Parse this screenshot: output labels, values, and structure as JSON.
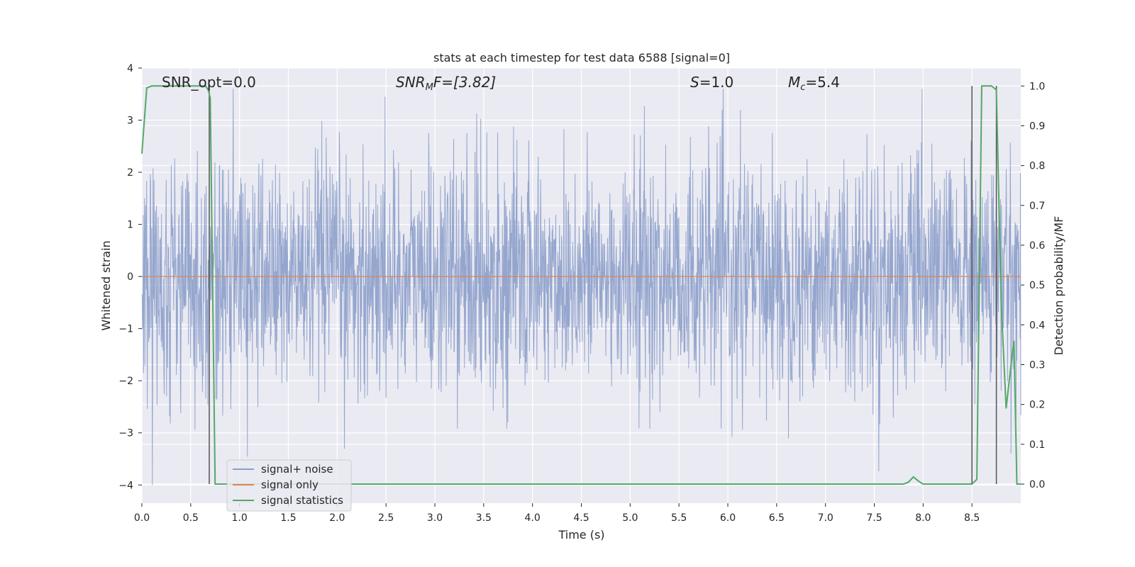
{
  "chart_data": {
    "type": "line",
    "title": "stats at each timestep for test data 6588 [signal=0]",
    "xlabel": "Time (s)",
    "ylabel": "Whitened strain",
    "y2label": "Detection probability/MF",
    "xlim": [
      0.0,
      9.0
    ],
    "ylim": [
      -4.35,
      4.0
    ],
    "y2lim": [
      -0.048,
      1.045
    ],
    "xticks": [
      "0.0",
      "0.5",
      "1.0",
      "1.5",
      "2.0",
      "2.5",
      "3.0",
      "3.5",
      "4.0",
      "4.5",
      "5.0",
      "5.5",
      "6.0",
      "6.5",
      "7.0",
      "7.5",
      "8.0",
      "8.5"
    ],
    "yticks": [
      "4",
      "3",
      "2",
      "1",
      "0",
      "−1",
      "−2",
      "−3",
      "−4"
    ],
    "y2ticks": [
      "1.0",
      "0.9",
      "0.8",
      "0.7",
      "0.6",
      "0.5",
      "0.4",
      "0.3",
      "0.2",
      "0.1",
      "0.0"
    ],
    "annotations": {
      "snr_opt": "SNR_opt=0.0",
      "snr_mf_main": "SNR",
      "snr_mf_sub": "M",
      "snr_mf_rest": "F=[3.82]",
      "s_main": "S",
      "s_rest": "=1.0",
      "mc_main": "M",
      "mc_sub": "c",
      "mc_rest": "=5.4"
    },
    "legend": {
      "placement": "lower-left",
      "entries": [
        "signal+ noise",
        "signal only",
        "signal statistics"
      ]
    },
    "colors": {
      "noise": "#8c9fca",
      "signal": "#dd8452",
      "stats": "#55a868",
      "vline": "#555555",
      "background": "#eaeaf2",
      "grid": "#ffffff"
    },
    "series": [
      {
        "name": "signal+ noise",
        "description_values": "whitened strain noise, approx. N(0,1) with peaks to ±3.6",
        "amplitude_range": [
          -4.0,
          3.6
        ]
      },
      {
        "name": "signal only",
        "values_constant": 0.0
      },
      {
        "name": "signal statistics",
        "x": [
          0.0,
          0.05,
          0.1,
          0.15,
          0.2,
          0.3,
          0.4,
          0.5,
          0.6,
          0.65,
          0.68,
          0.7,
          0.75,
          0.8,
          1.0,
          2.0,
          3.0,
          4.0,
          5.0,
          6.0,
          7.0,
          7.5,
          7.8,
          7.85,
          7.9,
          7.95,
          8.0,
          8.5,
          8.55,
          8.6,
          8.65,
          8.7,
          8.75,
          8.8,
          8.85,
          8.9,
          8.93,
          8.96,
          9.0
        ],
        "y": [
          0.83,
          0.995,
          1.0,
          1.0,
          1.0,
          1.0,
          1.0,
          1.0,
          1.0,
          1.0,
          0.99,
          0.97,
          0.0,
          0.0,
          0.0,
          0.0,
          0.0,
          0.0,
          0.0,
          0.0,
          0.0,
          0.0,
          0.0,
          0.005,
          0.018,
          0.008,
          0.0,
          0.0,
          0.012,
          1.0,
          1.0,
          1.0,
          0.99,
          0.45,
          0.19,
          0.3,
          0.36,
          0.0,
          0.0
        ]
      }
    ],
    "vertical_lines_x": [
      0.69,
      8.5,
      8.75
    ]
  }
}
